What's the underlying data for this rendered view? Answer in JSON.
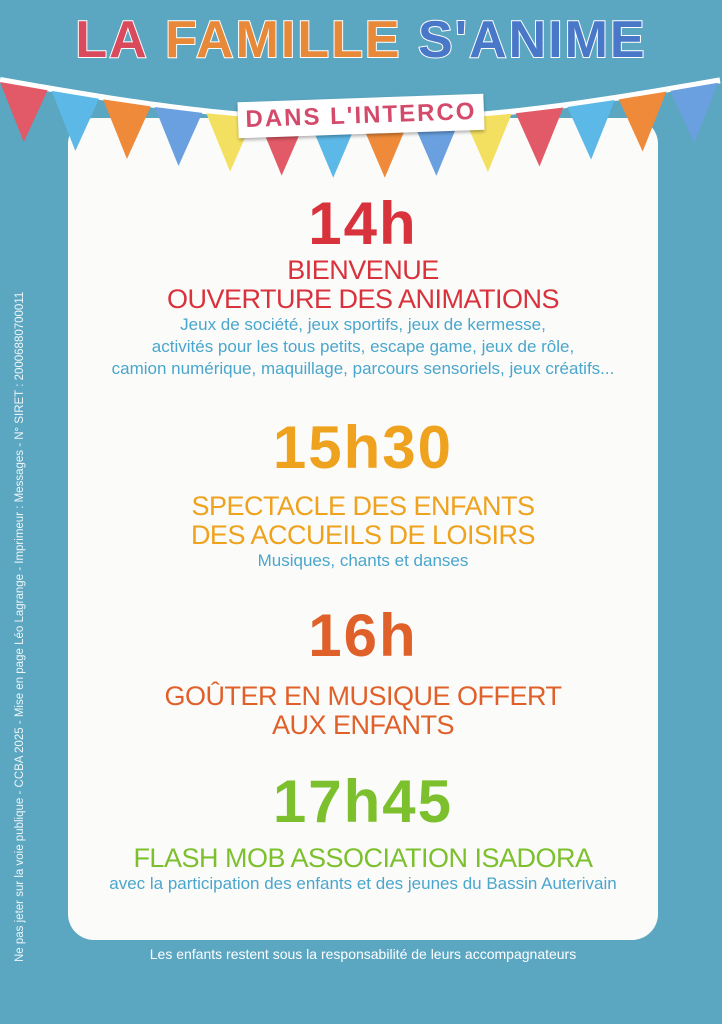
{
  "header": {
    "title_words": [
      "LA",
      "FAMILLE",
      "S'ANIME"
    ],
    "subtitle": "DANS L'INTERCO",
    "colors": {
      "la": "#d94a5c",
      "famille": "#e8893a",
      "sanime": "#4a78c8",
      "subtitle": "#d44a6a"
    }
  },
  "bunting_colors": [
    "#e25a68",
    "#5cb8e6",
    "#ee8a3a",
    "#6aa0e0",
    "#f4e060",
    "#e25a68",
    "#5cb8e6",
    "#ee8a3a",
    "#6aa0e0",
    "#f4e060",
    "#e25a68",
    "#5cb8e6",
    "#ee8a3a",
    "#6aa0e0"
  ],
  "schedule": [
    {
      "time": "14h",
      "heading": [
        "BIENVENUE",
        "OUVERTURE DES ANIMATIONS"
      ],
      "description": [
        "Jeux de société, jeux sportifs, jeux de kermesse,",
        "activités pour les tous petits, escape game, jeux de rôle,",
        "camion numérique, maquillage, parcours sensoriels, jeux créatifs..."
      ],
      "color": "#d8323c"
    },
    {
      "time": "15h30",
      "heading": [
        "SPECTACLE DES ENFANTS",
        "DES ACCUEILS DE LOISIRS"
      ],
      "description": [
        "Musiques, chants et danses"
      ],
      "color": "#eea21e"
    },
    {
      "time": "16h",
      "heading": [
        "GOÛTER EN MUSIQUE OFFERT",
        "AUX ENFANTS"
      ],
      "description": [],
      "color": "#e0602a"
    },
    {
      "time": "17h45",
      "heading": [
        "FLASH MOB ASSOCIATION ISADORA"
      ],
      "description": [
        "avec la participation des enfants et des jeunes du Bassin Auterivain"
      ],
      "color": "#7dc02e"
    }
  ],
  "footer": "Les enfants restent sous la responsabilité de leurs accompagnateurs",
  "legal": "Ne pas jeter sur la voie publique - CCBA 2025 - Mise en page Léo Lagrange - Imprimeur : Messages - N° SIRET : 20006880700011"
}
